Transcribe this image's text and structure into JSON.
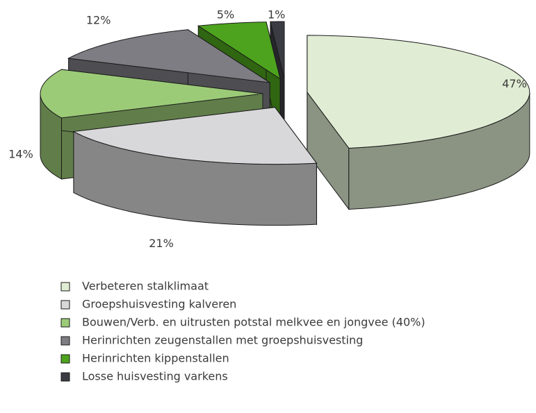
{
  "chart_data": {
    "type": "pie3d",
    "categories": [
      "Verbeteren stalklimaat",
      "Groepshuisvesting kalveren",
      "Bouwen/Verb. en uitrusten potstal melkvee en jongvee (40%)",
      "Herinrichten zeugenstallen met groepshuisvesting",
      "Herinrichten kippenstallen",
      "Losse huisvesting varkens"
    ],
    "values": [
      47,
      21,
      14,
      12,
      5,
      1
    ],
    "value_labels": [
      "47%",
      "21%",
      "14%",
      "12%",
      "5%",
      "1%"
    ],
    "colors": [
      "#e0edd4",
      "#d8d8da",
      "#9ccb78",
      "#7e7d84",
      "#4da31d",
      "#3b3b44"
    ],
    "legend": "bottom"
  }
}
